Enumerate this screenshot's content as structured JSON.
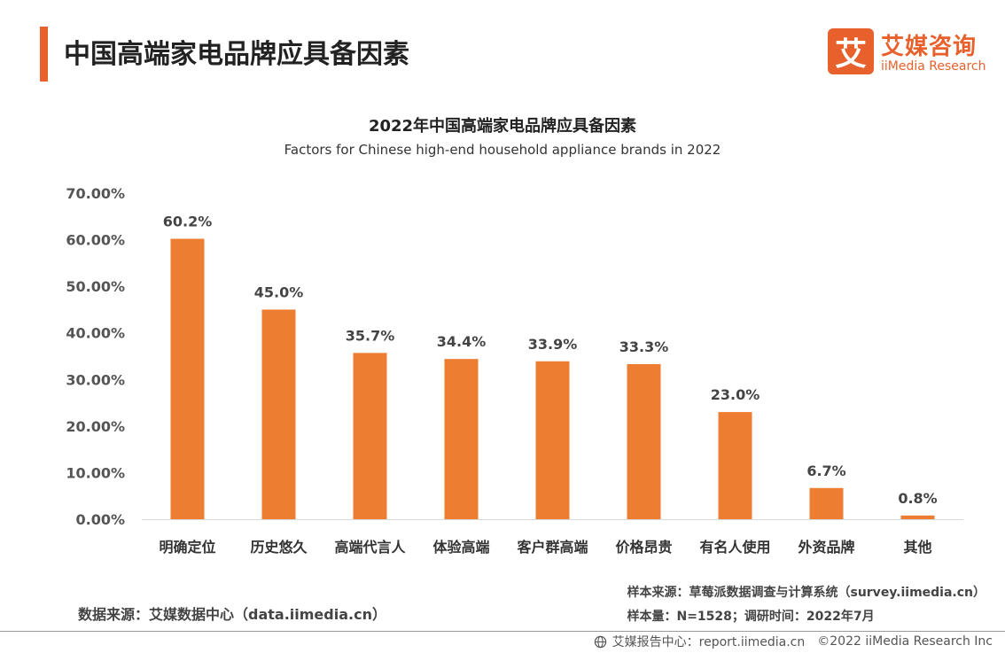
{
  "header": {
    "title": "中国高端家电品牌应具备因素",
    "logo_mark": "艾",
    "logo_cn": "艾媒咨询",
    "logo_en": "iiMedia Research"
  },
  "colors": {
    "accent": "#e8612c",
    "bar": "#ed7d31"
  },
  "chart_data": {
    "type": "bar",
    "title": "2022年中国高端家电品牌应具备因素",
    "subtitle": "Factors for Chinese high-end household appliance brands in 2022",
    "categories": [
      "明确定位",
      "历史悠久",
      "高端代言人",
      "体验高端",
      "客户群高端",
      "价格昂贵",
      "有名人使用",
      "外资品牌",
      "其他"
    ],
    "values": [
      60.2,
      45.0,
      35.7,
      34.4,
      33.9,
      33.3,
      23.0,
      6.7,
      0.8
    ],
    "value_labels": [
      "60.2%",
      "45.0%",
      "35.7%",
      "34.4%",
      "33.9%",
      "33.3%",
      "23.0%",
      "6.7%",
      "0.8%"
    ],
    "yticks": [
      0,
      10,
      20,
      30,
      40,
      50,
      60,
      70
    ],
    "ytick_labels": [
      "0.00%",
      "10.00%",
      "20.00%",
      "30.00%",
      "40.00%",
      "50.00%",
      "60.00%",
      "70.00%"
    ],
    "ylim": [
      0,
      70
    ],
    "grid": false,
    "legend": "none"
  },
  "footer": {
    "source": "数据来源：艾媒数据中心（data.iimedia.cn）",
    "sample_source": "样本来源：草莓派数据调查与计算系统（survey.iimedia.cn）",
    "sample_size": "样本量：N=1528；调研时间：2022年7月",
    "report_center": "艾媒报告中心：report.iimedia.cn",
    "copyright": "©2022  iiMedia Research  Inc"
  }
}
